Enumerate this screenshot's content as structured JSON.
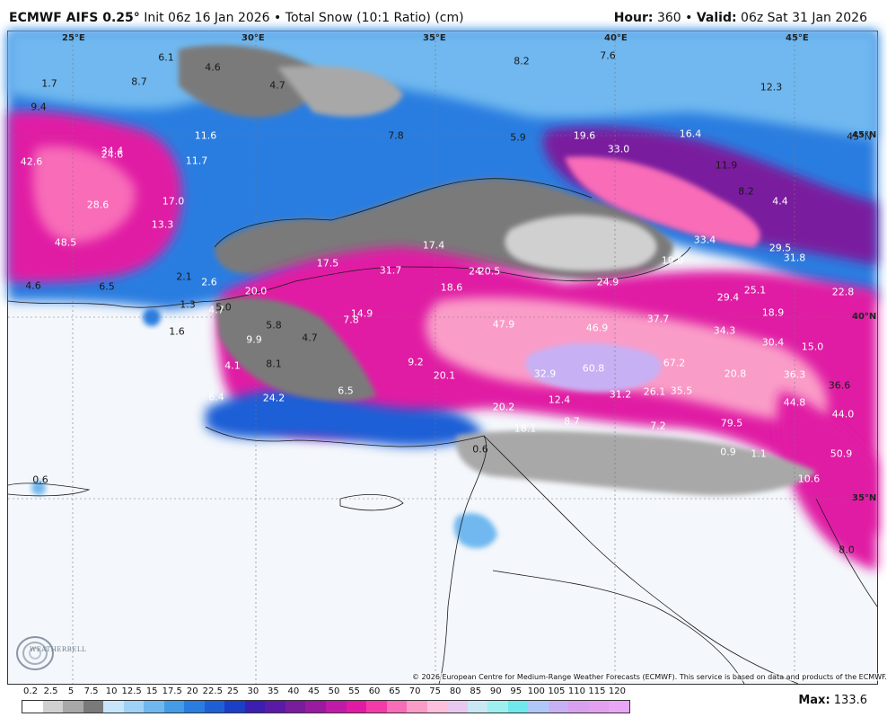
{
  "header": {
    "model": "ECMWF AIFS 0.25",
    "degree": "°",
    "init": "Init 06z 16 Jan 2026",
    "separator": "•",
    "product": "Total Snow (10:1 Ratio) (cm)",
    "hour_label": "Hour:",
    "hour_value": "360",
    "valid_label": "Valid:",
    "valid_value": "06z Sat 31 Jan 2026"
  },
  "grid_labels": [
    "25°E",
    "30°E",
    "35°E",
    "40°E",
    "45°E",
    "45°N",
    "40°N",
    "35°N"
  ],
  "value_labels": [
    "1.7",
    "9.4",
    "6.1",
    "4.6",
    "8.7",
    "4.7",
    "8.2",
    "7.6",
    "12.3",
    "11.6",
    "11.7",
    "7.8",
    "5.9",
    "19.6",
    "33.0",
    "16.4",
    "45°N",
    "42.6",
    "34.4",
    "24.6",
    "11.9",
    "17.0",
    "28.6",
    "8.2",
    "4.4",
    "13.3",
    "48.5",
    "17.4",
    "33.4",
    "29.5",
    "31.8",
    "17.5",
    "31.7",
    "24",
    "20.5",
    "19.0",
    "4.6",
    "6.5",
    "2.6",
    "20.0",
    "18.6",
    "24.9",
    "29.4",
    "25.1",
    "22.8",
    "4.7",
    "14.9",
    "18.9",
    "1.6",
    "5.8",
    "7.8",
    "47.9",
    "46.9",
    "37.7",
    "34.3",
    "30.4",
    "15.0",
    "9.9",
    "4.7",
    "8.1",
    "9.2",
    "20.1",
    "32.9",
    "60.8",
    "67.2",
    "20.8",
    "36.3",
    "4.1",
    "36.6",
    "6.4",
    "24.2",
    "6.5",
    "12.4",
    "31.2",
    "26.1",
    "35.5",
    "44.8",
    "20.2",
    "18.1",
    "8.7",
    "7.2",
    "79.5",
    "44.0",
    "0.6",
    "0.9",
    "1.1",
    "50.9",
    "10.6",
    "0.6",
    "8.0",
    "1.3",
    "5.0",
    "2.1"
  ],
  "copyright": "© 2026 European Centre for Medium-Range Weather Forecasts (ECMWF). This service is based on data and products of the ECMWF.",
  "logo": {
    "text": "WEATHERBELL"
  },
  "legend": {
    "labels": [
      "0.2",
      "2.5",
      "5",
      "7.5",
      "10",
      "12.5",
      "15",
      "17.5",
      "20",
      "22.5",
      "25",
      "30",
      "35",
      "40",
      "45",
      "50",
      "55",
      "60",
      "65",
      "70",
      "75",
      "80",
      "85",
      "90",
      "95",
      "100",
      "105",
      "110",
      "115",
      "120"
    ],
    "colors": [
      "#ffffff",
      "#d0d0d0",
      "#a8a8a8",
      "#7a7a7a",
      "#c8e6fb",
      "#9fd2f7",
      "#6fb8ef",
      "#459ce6",
      "#2a7de0",
      "#1f5fd6",
      "#1c3fc8",
      "#3b1fb0",
      "#5a1aa6",
      "#7a1c9e",
      "#9a1aa0",
      "#c01aa8",
      "#e01aa4",
      "#f43aa8",
      "#f86cb8",
      "#fa9cc8",
      "#fcc0dc",
      "#e8c8ee",
      "#c8e8f4",
      "#9ef0f0",
      "#6ee8ea",
      "#b0c8f8",
      "#c8b0f4",
      "#d8a0ee",
      "#e4a0f0",
      "#e9a6f4"
    ]
  },
  "max": {
    "label": "Max:",
    "value": "133.6"
  }
}
